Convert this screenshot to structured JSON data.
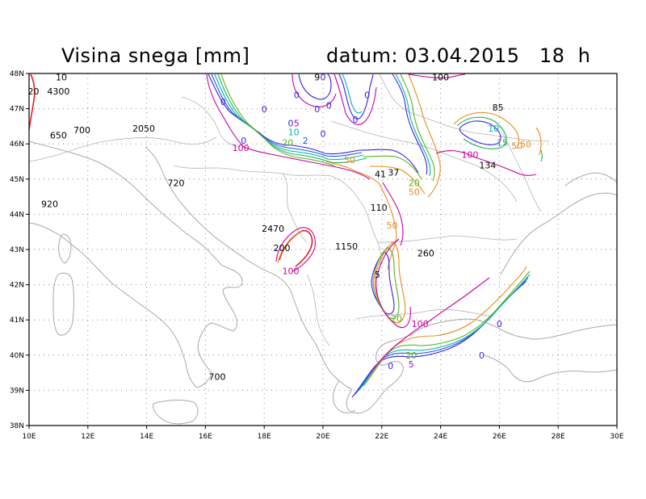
{
  "header": {
    "title": "Visina snega [mm]",
    "date_label": "datum: 03.04.2015   18  h"
  },
  "axes": {
    "x_ticks": [
      "10E",
      "12E",
      "14E",
      "16E",
      "18E",
      "20E",
      "22E",
      "24E",
      "26E",
      "28E",
      "30E"
    ],
    "y_ticks": [
      "48N",
      "47N",
      "46N",
      "45N",
      "44N",
      "43N",
      "42N",
      "41N",
      "40N",
      "39N",
      "38N"
    ],
    "lon_range": [
      10,
      30
    ],
    "lat_range": [
      38,
      48
    ],
    "grid": "dotted"
  },
  "contour_colors": {
    "0": "#3c1ee6",
    "2": "#1e5ae6",
    "5": "#b400b4",
    "10": "#00b4b4",
    "15": "#1eb45a",
    "20": "#5ab41e",
    "50": "#e68c1e",
    "100": "#c800a0",
    "red": "#e61e1e"
  },
  "point_values": [
    {
      "text": "10",
      "lon": 11.1,
      "lat": 47.8
    },
    {
      "text": "20",
      "lon": 10.15,
      "lat": 47.4
    },
    {
      "text": "4300",
      "lon": 11.0,
      "lat": 47.4
    },
    {
      "text": "700",
      "lon": 11.8,
      "lat": 46.3
    },
    {
      "text": "650",
      "lon": 11.0,
      "lat": 46.15
    },
    {
      "text": "2050",
      "lon": 13.9,
      "lat": 46.35
    },
    {
      "text": "720",
      "lon": 15.0,
      "lat": 44.8
    },
    {
      "text": "920",
      "lon": 10.7,
      "lat": 44.2
    },
    {
      "text": "2470",
      "lon": 18.3,
      "lat": 43.5
    },
    {
      "text": "200",
      "lon": 18.6,
      "lat": 42.95
    },
    {
      "text": "1150",
      "lon": 20.8,
      "lat": 43.0
    },
    {
      "text": "100",
      "lon": 24.0,
      "lat": 47.8
    },
    {
      "text": "85",
      "lon": 25.95,
      "lat": 46.95
    },
    {
      "text": "134",
      "lon": 25.6,
      "lat": 45.3
    },
    {
      "text": "41",
      "lon": 21.95,
      "lat": 45.05
    },
    {
      "text": "37",
      "lon": 22.4,
      "lat": 45.1
    },
    {
      "text": "110",
      "lon": 21.9,
      "lat": 44.1
    },
    {
      "text": "260",
      "lon": 23.5,
      "lat": 42.8
    },
    {
      "text": "700",
      "lon": 16.4,
      "lat": 39.3
    },
    {
      "text": "5",
      "lon": 21.85,
      "lat": 42.2
    },
    {
      "text": "9",
      "lon": 19.8,
      "lat": 47.8
    }
  ],
  "contour_labels": [
    {
      "text": "0",
      "color": "0",
      "lon": 16.6,
      "lat": 47.1
    },
    {
      "text": "0",
      "color": "0",
      "lon": 18.0,
      "lat": 46.9
    },
    {
      "text": "0",
      "color": "0",
      "lon": 19.1,
      "lat": 47.3
    },
    {
      "text": "0",
      "color": "0",
      "lon": 19.8,
      "lat": 46.9
    },
    {
      "text": "0",
      "color": "0",
      "lon": 20.2,
      "lat": 47.0
    },
    {
      "text": "0",
      "color": "0",
      "lon": 20.0,
      "lat": 47.8
    },
    {
      "text": "0",
      "color": "0",
      "lon": 21.5,
      "lat": 47.3
    },
    {
      "text": "0",
      "color": "0",
      "lon": 21.1,
      "lat": 46.6
    },
    {
      "text": "0",
      "color": "0",
      "lon": 18.9,
      "lat": 46.5
    },
    {
      "text": "0",
      "color": "0",
      "lon": 20.0,
      "lat": 46.2
    },
    {
      "text": "0",
      "color": "0",
      "lon": 17.3,
      "lat": 46.0
    },
    {
      "text": "0",
      "color": "0",
      "lon": 26.0,
      "lat": 40.8
    },
    {
      "text": "0",
      "color": "0",
      "lon": 25.4,
      "lat": 39.9
    },
    {
      "text": "0",
      "color": "0",
      "lon": 22.3,
      "lat": 39.6
    },
    {
      "text": "5",
      "color": "5",
      "lon": 19.1,
      "lat": 46.5
    },
    {
      "text": "10",
      "color": "10",
      "lon": 19.0,
      "lat": 46.25
    },
    {
      "text": "10",
      "color": "10",
      "lon": 25.8,
      "lat": 46.35
    },
    {
      "text": "15",
      "color": "15",
      "lon": 26.1,
      "lat": 45.95
    },
    {
      "text": "20",
      "color": "20",
      "lon": 18.8,
      "lat": 45.95
    },
    {
      "text": "2",
      "color": "2",
      "lon": 19.4,
      "lat": 46.0
    },
    {
      "text": "20",
      "color": "20",
      "lon": 23.1,
      "lat": 44.8
    },
    {
      "text": "20",
      "color": "20",
      "lon": 22.5,
      "lat": 40.95
    },
    {
      "text": "20",
      "color": "20",
      "lon": 23.0,
      "lat": 39.9
    },
    {
      "text": "5",
      "color": "5",
      "lon": 23.0,
      "lat": 39.65
    },
    {
      "text": "50",
      "color": "50",
      "lon": 20.9,
      "lat": 45.45
    },
    {
      "text": "50",
      "color": "50",
      "lon": 23.1,
      "lat": 44.55
    },
    {
      "text": "50",
      "color": "50",
      "lon": 22.35,
      "lat": 43.6
    },
    {
      "text": "50",
      "color": "50",
      "lon": 26.6,
      "lat": 45.85
    },
    {
      "text": "50",
      "color": "50",
      "lon": 26.9,
      "lat": 45.9
    },
    {
      "text": "100",
      "color": "100",
      "lon": 17.2,
      "lat": 45.8
    },
    {
      "text": "100",
      "color": "100",
      "lon": 25.0,
      "lat": 45.6
    },
    {
      "text": "100",
      "color": "100",
      "lon": 18.9,
      "lat": 42.3
    },
    {
      "text": "100",
      "color": "100",
      "lon": 23.3,
      "lat": 40.8
    }
  ]
}
